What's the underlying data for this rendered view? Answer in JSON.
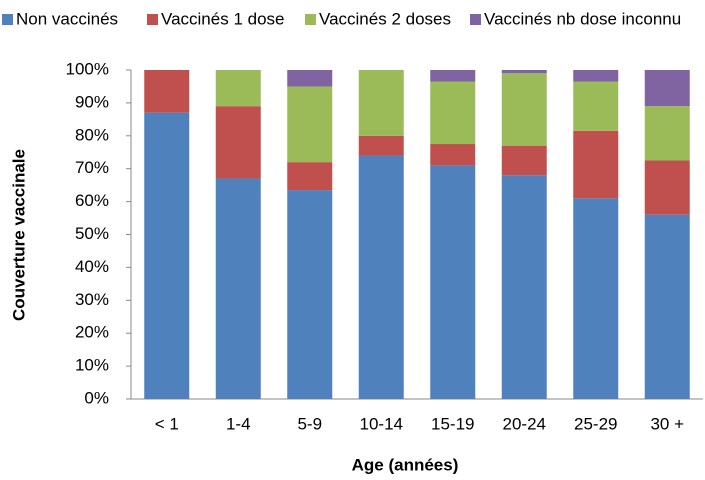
{
  "chart_data": {
    "type": "stacked_bar",
    "xlabel": "Age (années)",
    "ylabel": "Couverture vaccinale",
    "categories": [
      "< 1",
      "1-4",
      "5-9",
      "10-14",
      "15-19",
      "20-24",
      "25-29",
      "30 +"
    ],
    "series": [
      {
        "name": "Non vaccinés",
        "color": "#4f81bd",
        "values": [
          87,
          67,
          63.5,
          74,
          71,
          68,
          61,
          56
        ]
      },
      {
        "name": "Vaccinés 1 dose",
        "color": "#c0504d",
        "values": [
          13,
          22,
          8.5,
          6,
          6.5,
          9,
          20.5,
          16.5
        ]
      },
      {
        "name": "Vaccinés 2 doses",
        "color": "#9bbb59",
        "values": [
          0,
          11,
          23,
          20,
          19,
          22,
          15,
          16.5
        ]
      },
      {
        "name": "Vaccinés nb dose inconnu",
        "color": "#8064a2",
        "values": [
          0,
          0,
          5,
          0,
          3.5,
          1,
          3.5,
          11
        ]
      }
    ],
    "ylim": [
      0,
      100
    ],
    "yticks": [
      {
        "value": 0,
        "label": "0%"
      },
      {
        "value": 10,
        "label": "10%"
      },
      {
        "value": 20,
        "label": "20%"
      },
      {
        "value": 30,
        "label": "30%"
      },
      {
        "value": 40,
        "label": "40%"
      },
      {
        "value": 50,
        "label": "50%"
      },
      {
        "value": 60,
        "label": "60%"
      },
      {
        "value": 70,
        "label": "70%"
      },
      {
        "value": 80,
        "label": "80%"
      },
      {
        "value": 90,
        "label": "90%"
      },
      {
        "value": 100,
        "label": "100%"
      }
    ],
    "grid": false
  }
}
